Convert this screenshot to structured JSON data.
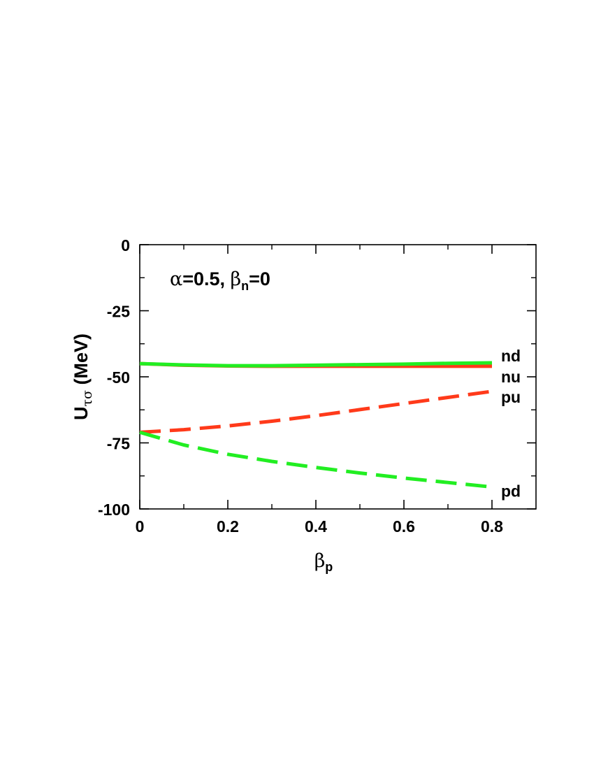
{
  "chart_data": {
    "type": "line",
    "annotation": {
      "alpha_symbol": "α",
      "alpha_text": "=0.5, ",
      "beta_symbol": "β",
      "beta_sub": "n",
      "beta_text": "=0"
    },
    "ylabel": {
      "main": "U",
      "sub": "τσ",
      "unit": " (MeV)"
    },
    "xlabel": {
      "main": "β",
      "sub": "p"
    },
    "xlim": [
      0,
      0.9
    ],
    "ylim": [
      -100,
      0
    ],
    "xticks": [
      0,
      0.2,
      0.4,
      0.6,
      0.8
    ],
    "xtick_labels": [
      "0",
      "0.2",
      "0.4",
      "0.6",
      "0.8"
    ],
    "yticks": [
      0,
      -25,
      -50,
      -75,
      -100
    ],
    "ytick_labels": [
      "0",
      "-25",
      "-50",
      "-75",
      "-100"
    ],
    "series": [
      {
        "name": "nu",
        "color": "#ff3a1a",
        "dash": "solid",
        "x": [
          0,
          0.1,
          0.2,
          0.3,
          0.4,
          0.5,
          0.6,
          0.7,
          0.8
        ],
        "y": [
          -45.0,
          -45.6,
          -45.9,
          -46.0,
          -46.0,
          -46.0,
          -46.0,
          -46.0,
          -46.0
        ]
      },
      {
        "name": "nd",
        "color": "#22ee22",
        "dash": "solid",
        "x": [
          0,
          0.1,
          0.2,
          0.3,
          0.4,
          0.5,
          0.6,
          0.7,
          0.8
        ],
        "y": [
          -45.0,
          -45.5,
          -45.8,
          -45.8,
          -45.6,
          -45.4,
          -45.2,
          -44.9,
          -44.7
        ]
      },
      {
        "name": "pu",
        "color": "#ff3a1a",
        "dash": "dashed",
        "x": [
          0,
          0.1,
          0.2,
          0.3,
          0.4,
          0.5,
          0.6,
          0.7,
          0.8
        ],
        "y": [
          -71.0,
          -70.0,
          -68.6,
          -66.8,
          -64.7,
          -62.4,
          -60.1,
          -57.8,
          -55.5
        ]
      },
      {
        "name": "pd",
        "color": "#22ee22",
        "dash": "dashed",
        "x": [
          0,
          0.1,
          0.2,
          0.3,
          0.4,
          0.5,
          0.6,
          0.7,
          0.8
        ],
        "y": [
          -71.0,
          -75.8,
          -79.3,
          -82.0,
          -84.3,
          -86.4,
          -88.3,
          -90.0,
          -91.7
        ]
      }
    ]
  }
}
